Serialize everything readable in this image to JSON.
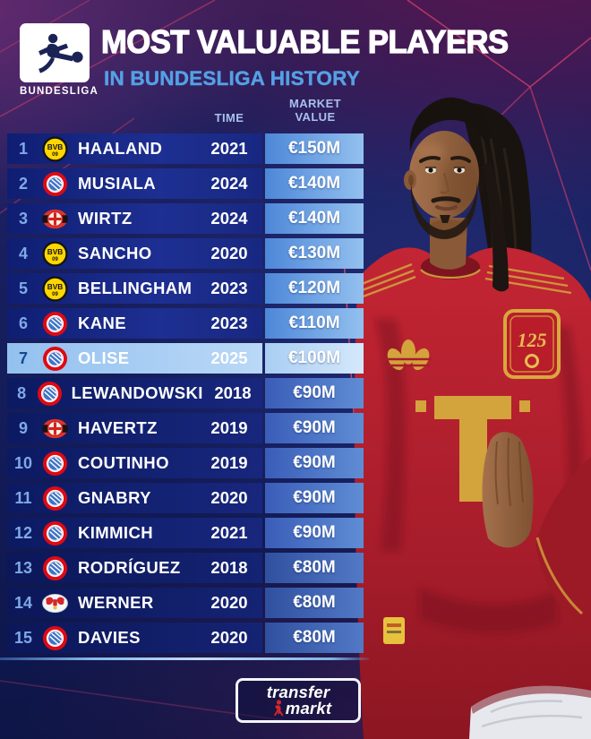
{
  "header": {
    "logo_text": "BUNDESLIGA",
    "title": "MOST VALUABLE PLAYERS",
    "subtitle": "IN BUNDESLIGA HISTORY"
  },
  "table": {
    "col_time": "TIME",
    "col_value_lines": [
      "MARKET",
      "VALUE"
    ],
    "rows": [
      {
        "rank": "1",
        "club": "borussia-dortmund",
        "player": "HAALAND",
        "time": "2021",
        "value": "€150M",
        "highlighted": false
      },
      {
        "rank": "2",
        "club": "bayern-munich",
        "player": "MUSIALA",
        "time": "2024",
        "value": "€140M",
        "highlighted": false
      },
      {
        "rank": "3",
        "club": "bayer-leverkusen",
        "player": "WIRTZ",
        "time": "2024",
        "value": "€140M",
        "highlighted": false
      },
      {
        "rank": "4",
        "club": "borussia-dortmund",
        "player": "SANCHO",
        "time": "2020",
        "value": "€130M",
        "highlighted": false
      },
      {
        "rank": "5",
        "club": "borussia-dortmund",
        "player": "BELLINGHAM",
        "time": "2023",
        "value": "€120M",
        "highlighted": false
      },
      {
        "rank": "6",
        "club": "bayern-munich",
        "player": "KANE",
        "time": "2023",
        "value": "€110M",
        "highlighted": false
      },
      {
        "rank": "7",
        "club": "bayern-munich",
        "player": "OLISE",
        "time": "2025",
        "value": "€100M",
        "highlighted": true
      },
      {
        "rank": "8",
        "club": "bayern-munich",
        "player": "LEWANDOWSKI",
        "time": "2018",
        "value": "€90M",
        "highlighted": false
      },
      {
        "rank": "9",
        "club": "bayer-leverkusen",
        "player": "HAVERTZ",
        "time": "2019",
        "value": "€90M",
        "highlighted": false
      },
      {
        "rank": "10",
        "club": "bayern-munich",
        "player": "COUTINHO",
        "time": "2019",
        "value": "€90M",
        "highlighted": false
      },
      {
        "rank": "11",
        "club": "bayern-munich",
        "player": "GNABRY",
        "time": "2020",
        "value": "€90M",
        "highlighted": false
      },
      {
        "rank": "12",
        "club": "bayern-munich",
        "player": "KIMMICH",
        "time": "2021",
        "value": "€90M",
        "highlighted": false
      },
      {
        "rank": "13",
        "club": "bayern-munich",
        "player": "RODRÍGUEZ",
        "time": "2018",
        "value": "€80M",
        "highlighted": false
      },
      {
        "rank": "14",
        "club": "rb-leipzig",
        "player": "WERNER",
        "time": "2020",
        "value": "€80M",
        "highlighted": false
      },
      {
        "rank": "15",
        "club": "bayern-munich",
        "player": "DAVIES",
        "time": "2020",
        "value": "€80M",
        "highlighted": false
      }
    ]
  },
  "player_image": {
    "description": "footballer in red jersey with gold T logo",
    "crest_text": "125"
  },
  "footer": {
    "brand_line1": "transfer",
    "brand_line2": "markt"
  },
  "colors": {
    "accent_blue": "#55a0e6",
    "value_cell_blue": "#4d87d8",
    "highlight_blue": "#a9cef2",
    "magenta_line": "#d83f6b",
    "jersey_red": "#b22230",
    "gold": "#d3a33c"
  }
}
